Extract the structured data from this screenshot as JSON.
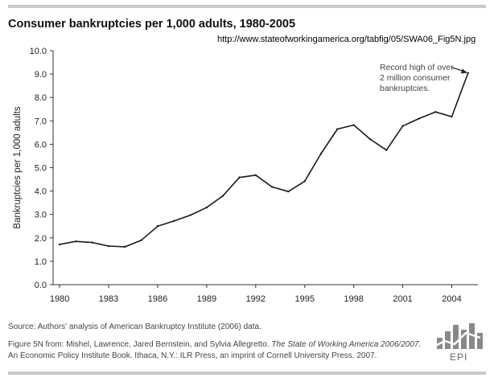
{
  "title": "Consumer bankruptcies per 1,000 adults, 1980-2005",
  "url": "http://www.stateofworkingamerica.org/tabfig/05/SWA06_Fig5N.jpg",
  "source_note": "Source: Authors' analysis of American Bankruptcy Institute (2006) data.",
  "figure_credit": {
    "prefix": "Figure 5N from: Mishel, Lawrence, Jared Bernstein, and Sylvia Allegretto. ",
    "book": "The State of Working America 2006/2007.",
    "line2": "An Economic Policy Institute Book. Ithaca, N.Y.: ILR Press, an imprint of Cornell University Press. 2007."
  },
  "logo": {
    "text": "EPI",
    "color": "#888888"
  },
  "chart_data": {
    "type": "line",
    "title": "Consumer bankruptcies per 1,000 adults, 1980-2005",
    "xlabel": "",
    "ylabel": "Bankruptcies per 1,000 adults",
    "ylim": [
      0,
      10
    ],
    "xlim": [
      1980,
      2005
    ],
    "yticks": [
      0.0,
      1.0,
      2.0,
      3.0,
      4.0,
      5.0,
      6.0,
      7.0,
      8.0,
      9.0,
      10.0
    ],
    "ytick_labels": [
      "0.0",
      "1.0",
      "2.0",
      "3.0",
      "4.0",
      "5.0",
      "6.0",
      "7.0",
      "8.0",
      "9.0",
      "10.0"
    ],
    "xticks": [
      1980,
      1983,
      1986,
      1989,
      1992,
      1995,
      1998,
      2001,
      2004
    ],
    "xtick_labels": [
      "1980",
      "1983",
      "1986",
      "1989",
      "1992",
      "1995",
      "1998",
      "2001",
      "2004"
    ],
    "grid": false,
    "line_color": "#1a1a1a",
    "series": [
      {
        "x": [
          1980,
          1981,
          1982,
          1983,
          1984,
          1985,
          1986,
          1987,
          1988,
          1989,
          1990,
          1991,
          1992,
          1993,
          1994,
          1995,
          1996,
          1997,
          1998,
          1999,
          2000,
          2001,
          2002,
          2003,
          2004,
          2005
        ],
        "values": [
          1.72,
          1.85,
          1.8,
          1.65,
          1.62,
          1.9,
          2.5,
          2.72,
          2.97,
          3.3,
          3.8,
          4.58,
          4.68,
          4.18,
          3.98,
          4.42,
          5.6,
          6.65,
          6.82,
          6.22,
          5.75,
          6.78,
          7.1,
          7.38,
          7.18,
          9.05
        ]
      }
    ],
    "annotations": [
      {
        "lines": [
          "Record high of over",
          "2 million consumer",
          "bankruptcies."
        ],
        "points_to": [
          2005,
          9.05
        ]
      }
    ]
  }
}
